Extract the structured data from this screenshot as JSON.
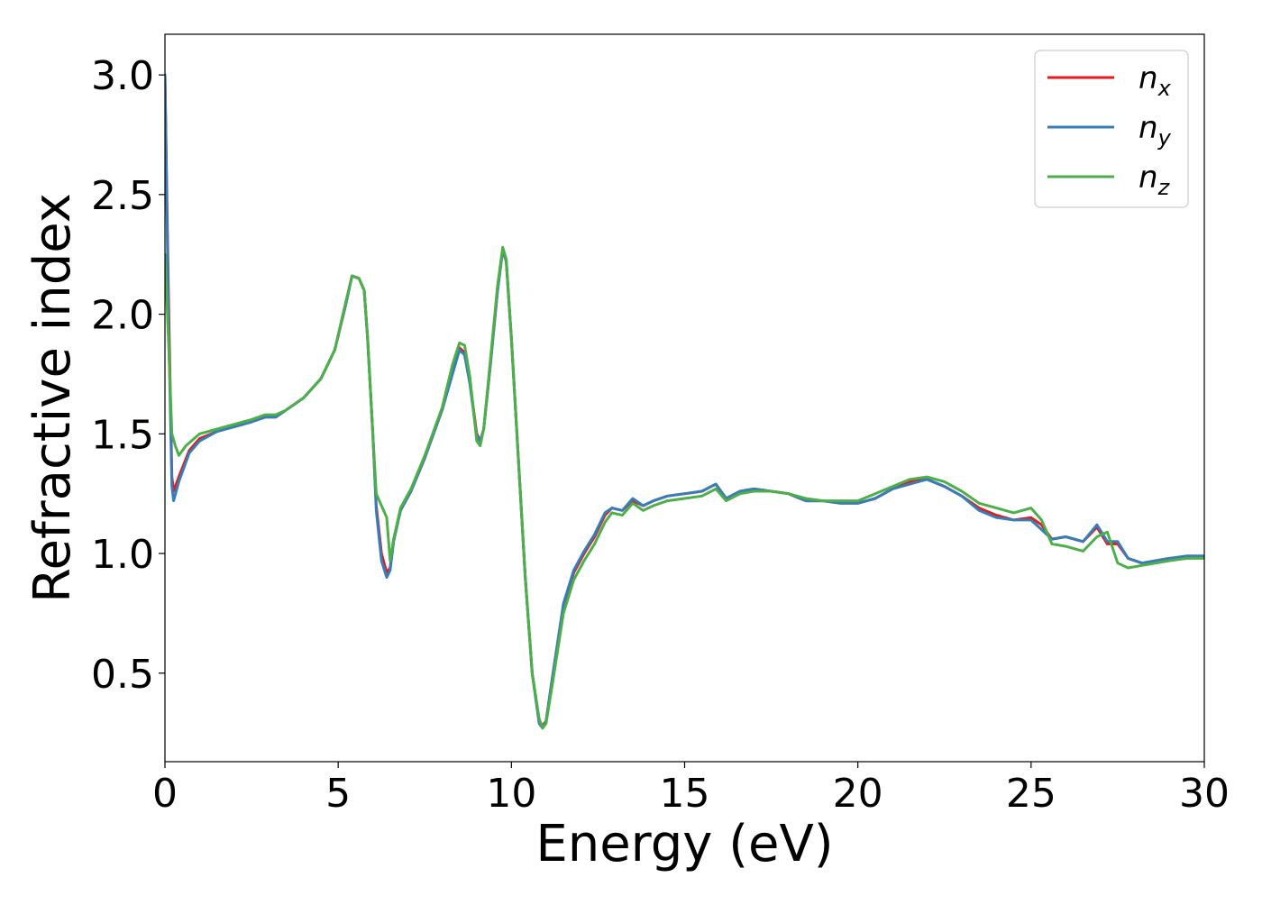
{
  "chart_data": {
    "type": "line",
    "title": "",
    "xlabel": "Energy (eV)",
    "ylabel": "Refractive index",
    "xlim": [
      0,
      30
    ],
    "ylim": [
      0.13,
      3.17
    ],
    "xticks": [
      0,
      5,
      10,
      15,
      20,
      25,
      30
    ],
    "xtick_labels": [
      "0",
      "5",
      "10",
      "15",
      "20",
      "25",
      "30"
    ],
    "yticks": [
      0.5,
      1.0,
      1.5,
      2.0,
      2.5,
      3.0
    ],
    "ytick_labels": [
      "0.5",
      "1.0",
      "1.5",
      "2.0",
      "2.5",
      "3.0"
    ],
    "grid": false,
    "legend_position": "top-right",
    "series": [
      {
        "name": "n_x",
        "label_main": "n",
        "label_sub": "x",
        "color": "#e41a1c",
        "points": [
          [
            0,
            3.0
          ],
          [
            0.1,
            2.1
          ],
          [
            0.2,
            1.32
          ],
          [
            0.25,
            1.26
          ],
          [
            0.4,
            1.32
          ],
          [
            0.7,
            1.43
          ],
          [
            1.0,
            1.48
          ],
          [
            1.5,
            1.51
          ],
          [
            2.0,
            1.53
          ],
          [
            2.5,
            1.55
          ],
          [
            2.9,
            1.57
          ],
          [
            3.2,
            1.57
          ],
          [
            3.5,
            1.6
          ],
          [
            4.0,
            1.65
          ],
          [
            4.5,
            1.73
          ],
          [
            4.9,
            1.85
          ],
          [
            5.2,
            2.03
          ],
          [
            5.4,
            2.16
          ],
          [
            5.6,
            2.15
          ],
          [
            5.75,
            2.1
          ],
          [
            5.85,
            1.9
          ],
          [
            6.0,
            1.5
          ],
          [
            6.1,
            1.2
          ],
          [
            6.25,
            1.0
          ],
          [
            6.4,
            0.92
          ],
          [
            6.5,
            0.94
          ],
          [
            6.6,
            1.06
          ],
          [
            6.8,
            1.18
          ],
          [
            7.1,
            1.26
          ],
          [
            7.5,
            1.4
          ],
          [
            8.0,
            1.6
          ],
          [
            8.3,
            1.76
          ],
          [
            8.5,
            1.86
          ],
          [
            8.65,
            1.84
          ],
          [
            8.8,
            1.72
          ],
          [
            9.0,
            1.5
          ],
          [
            9.1,
            1.47
          ],
          [
            9.2,
            1.52
          ],
          [
            9.4,
            1.8
          ],
          [
            9.6,
            2.1
          ],
          [
            9.75,
            2.27
          ],
          [
            9.85,
            2.22
          ],
          [
            10.0,
            1.9
          ],
          [
            10.2,
            1.4
          ],
          [
            10.4,
            0.9
          ],
          [
            10.6,
            0.5
          ],
          [
            10.8,
            0.3
          ],
          [
            10.9,
            0.28
          ],
          [
            11.0,
            0.3
          ],
          [
            11.2,
            0.5
          ],
          [
            11.5,
            0.78
          ],
          [
            11.8,
            0.92
          ],
          [
            12.1,
            1.0
          ],
          [
            12.4,
            1.07
          ],
          [
            12.7,
            1.16
          ],
          [
            12.9,
            1.19
          ],
          [
            13.2,
            1.18
          ],
          [
            13.5,
            1.22
          ],
          [
            13.8,
            1.2
          ],
          [
            14.1,
            1.22
          ],
          [
            14.5,
            1.24
          ],
          [
            15.0,
            1.25
          ],
          [
            15.5,
            1.26
          ],
          [
            15.9,
            1.29
          ],
          [
            16.2,
            1.23
          ],
          [
            16.6,
            1.26
          ],
          [
            17.0,
            1.27
          ],
          [
            17.5,
            1.26
          ],
          [
            18.0,
            1.25
          ],
          [
            18.5,
            1.22
          ],
          [
            19.0,
            1.22
          ],
          [
            19.5,
            1.21
          ],
          [
            20.0,
            1.21
          ],
          [
            20.5,
            1.23
          ],
          [
            21.0,
            1.27
          ],
          [
            21.5,
            1.3
          ],
          [
            22.0,
            1.31
          ],
          [
            22.5,
            1.28
          ],
          [
            23.0,
            1.24
          ],
          [
            23.5,
            1.19
          ],
          [
            24.0,
            1.16
          ],
          [
            24.5,
            1.14
          ],
          [
            25.0,
            1.15
          ],
          [
            25.3,
            1.12
          ],
          [
            25.6,
            1.06
          ],
          [
            26.0,
            1.07
          ],
          [
            26.5,
            1.05
          ],
          [
            26.9,
            1.11
          ],
          [
            27.2,
            1.04
          ],
          [
            27.5,
            1.04
          ],
          [
            27.8,
            0.98
          ],
          [
            28.2,
            0.96
          ],
          [
            28.6,
            0.97
          ],
          [
            29.0,
            0.98
          ],
          [
            29.5,
            0.98
          ],
          [
            30.0,
            0.99
          ]
        ]
      },
      {
        "name": "n_y",
        "label_main": "n",
        "label_sub": "y",
        "color": "#377eb8",
        "points": [
          [
            0,
            3.0
          ],
          [
            0.1,
            2.0
          ],
          [
            0.2,
            1.28
          ],
          [
            0.25,
            1.22
          ],
          [
            0.4,
            1.3
          ],
          [
            0.7,
            1.42
          ],
          [
            1.0,
            1.47
          ],
          [
            1.5,
            1.51
          ],
          [
            2.0,
            1.53
          ],
          [
            2.5,
            1.55
          ],
          [
            2.9,
            1.57
          ],
          [
            3.2,
            1.57
          ],
          [
            3.5,
            1.6
          ],
          [
            4.0,
            1.65
          ],
          [
            4.5,
            1.73
          ],
          [
            4.9,
            1.85
          ],
          [
            5.2,
            2.03
          ],
          [
            5.4,
            2.16
          ],
          [
            5.6,
            2.15
          ],
          [
            5.75,
            2.1
          ],
          [
            5.85,
            1.9
          ],
          [
            6.0,
            1.5
          ],
          [
            6.1,
            1.18
          ],
          [
            6.25,
            0.97
          ],
          [
            6.4,
            0.9
          ],
          [
            6.5,
            0.93
          ],
          [
            6.6,
            1.05
          ],
          [
            6.8,
            1.18
          ],
          [
            7.1,
            1.26
          ],
          [
            7.5,
            1.4
          ],
          [
            8.0,
            1.6
          ],
          [
            8.3,
            1.75
          ],
          [
            8.5,
            1.85
          ],
          [
            8.65,
            1.83
          ],
          [
            8.8,
            1.71
          ],
          [
            9.0,
            1.49
          ],
          [
            9.1,
            1.47
          ],
          [
            9.2,
            1.52
          ],
          [
            9.4,
            1.8
          ],
          [
            9.6,
            2.1
          ],
          [
            9.75,
            2.27
          ],
          [
            9.85,
            2.22
          ],
          [
            10.0,
            1.9
          ],
          [
            10.2,
            1.4
          ],
          [
            10.4,
            0.9
          ],
          [
            10.6,
            0.5
          ],
          [
            10.8,
            0.29
          ],
          [
            10.9,
            0.27
          ],
          [
            11.0,
            0.3
          ],
          [
            11.2,
            0.5
          ],
          [
            11.5,
            0.79
          ],
          [
            11.8,
            0.93
          ],
          [
            12.1,
            1.01
          ],
          [
            12.4,
            1.08
          ],
          [
            12.7,
            1.17
          ],
          [
            12.9,
            1.19
          ],
          [
            13.2,
            1.18
          ],
          [
            13.5,
            1.23
          ],
          [
            13.8,
            1.2
          ],
          [
            14.1,
            1.22
          ],
          [
            14.5,
            1.24
          ],
          [
            15.0,
            1.25
          ],
          [
            15.5,
            1.26
          ],
          [
            15.9,
            1.29
          ],
          [
            16.2,
            1.23
          ],
          [
            16.6,
            1.26
          ],
          [
            17.0,
            1.27
          ],
          [
            17.5,
            1.26
          ],
          [
            18.0,
            1.25
          ],
          [
            18.5,
            1.22
          ],
          [
            19.0,
            1.22
          ],
          [
            19.5,
            1.21
          ],
          [
            20.0,
            1.21
          ],
          [
            20.5,
            1.23
          ],
          [
            21.0,
            1.27
          ],
          [
            21.5,
            1.29
          ],
          [
            22.0,
            1.31
          ],
          [
            22.5,
            1.28
          ],
          [
            23.0,
            1.24
          ],
          [
            23.5,
            1.18
          ],
          [
            24.0,
            1.15
          ],
          [
            24.5,
            1.14
          ],
          [
            25.0,
            1.14
          ],
          [
            25.3,
            1.1
          ],
          [
            25.6,
            1.06
          ],
          [
            26.0,
            1.07
          ],
          [
            26.5,
            1.05
          ],
          [
            26.9,
            1.12
          ],
          [
            27.2,
            1.05
          ],
          [
            27.5,
            1.05
          ],
          [
            27.8,
            0.98
          ],
          [
            28.2,
            0.96
          ],
          [
            28.6,
            0.97
          ],
          [
            29.0,
            0.98
          ],
          [
            29.5,
            0.99
          ],
          [
            30.0,
            0.99
          ]
        ]
      },
      {
        "name": "n_z",
        "label_main": "n",
        "label_sub": "z",
        "color": "#4daf4a",
        "points": [
          [
            0,
            2.25
          ],
          [
            0.1,
            1.9
          ],
          [
            0.2,
            1.5
          ],
          [
            0.3,
            1.45
          ],
          [
            0.4,
            1.41
          ],
          [
            0.6,
            1.45
          ],
          [
            1.0,
            1.5
          ],
          [
            1.5,
            1.52
          ],
          [
            2.0,
            1.54
          ],
          [
            2.5,
            1.56
          ],
          [
            2.9,
            1.58
          ],
          [
            3.2,
            1.58
          ],
          [
            3.5,
            1.6
          ],
          [
            4.0,
            1.65
          ],
          [
            4.5,
            1.73
          ],
          [
            4.9,
            1.85
          ],
          [
            5.2,
            2.04
          ],
          [
            5.4,
            2.16
          ],
          [
            5.6,
            2.15
          ],
          [
            5.75,
            2.1
          ],
          [
            5.85,
            1.9
          ],
          [
            6.0,
            1.5
          ],
          [
            6.1,
            1.25
          ],
          [
            6.25,
            1.2
          ],
          [
            6.4,
            1.15
          ],
          [
            6.5,
            0.97
          ],
          [
            6.6,
            1.06
          ],
          [
            6.8,
            1.19
          ],
          [
            7.1,
            1.27
          ],
          [
            7.5,
            1.41
          ],
          [
            8.0,
            1.61
          ],
          [
            8.3,
            1.79
          ],
          [
            8.5,
            1.88
          ],
          [
            8.65,
            1.87
          ],
          [
            8.8,
            1.74
          ],
          [
            9.0,
            1.47
          ],
          [
            9.1,
            1.45
          ],
          [
            9.2,
            1.52
          ],
          [
            9.4,
            1.82
          ],
          [
            9.6,
            2.12
          ],
          [
            9.75,
            2.28
          ],
          [
            9.85,
            2.23
          ],
          [
            10.0,
            1.9
          ],
          [
            10.2,
            1.4
          ],
          [
            10.4,
            0.9
          ],
          [
            10.6,
            0.5
          ],
          [
            10.8,
            0.31
          ],
          [
            10.9,
            0.27
          ],
          [
            11.0,
            0.29
          ],
          [
            11.2,
            0.47
          ],
          [
            11.5,
            0.75
          ],
          [
            11.8,
            0.89
          ],
          [
            12.1,
            0.97
          ],
          [
            12.4,
            1.04
          ],
          [
            12.7,
            1.13
          ],
          [
            12.9,
            1.17
          ],
          [
            13.2,
            1.16
          ],
          [
            13.5,
            1.21
          ],
          [
            13.8,
            1.18
          ],
          [
            14.1,
            1.2
          ],
          [
            14.5,
            1.22
          ],
          [
            15.0,
            1.23
          ],
          [
            15.5,
            1.24
          ],
          [
            15.9,
            1.27
          ],
          [
            16.2,
            1.22
          ],
          [
            16.6,
            1.25
          ],
          [
            17.0,
            1.26
          ],
          [
            17.5,
            1.26
          ],
          [
            18.0,
            1.25
          ],
          [
            18.5,
            1.23
          ],
          [
            19.0,
            1.22
          ],
          [
            19.5,
            1.22
          ],
          [
            20.0,
            1.22
          ],
          [
            20.5,
            1.25
          ],
          [
            21.0,
            1.28
          ],
          [
            21.5,
            1.31
          ],
          [
            22.0,
            1.32
          ],
          [
            22.5,
            1.3
          ],
          [
            23.0,
            1.26
          ],
          [
            23.5,
            1.21
          ],
          [
            24.0,
            1.19
          ],
          [
            24.5,
            1.17
          ],
          [
            25.0,
            1.19
          ],
          [
            25.3,
            1.14
          ],
          [
            25.6,
            1.04
          ],
          [
            26.0,
            1.03
          ],
          [
            26.5,
            1.01
          ],
          [
            26.9,
            1.07
          ],
          [
            27.2,
            1.09
          ],
          [
            27.5,
            0.96
          ],
          [
            27.8,
            0.94
          ],
          [
            28.2,
            0.95
          ],
          [
            28.6,
            0.96
          ],
          [
            29.0,
            0.97
          ],
          [
            29.5,
            0.98
          ],
          [
            30.0,
            0.98
          ]
        ]
      }
    ]
  }
}
